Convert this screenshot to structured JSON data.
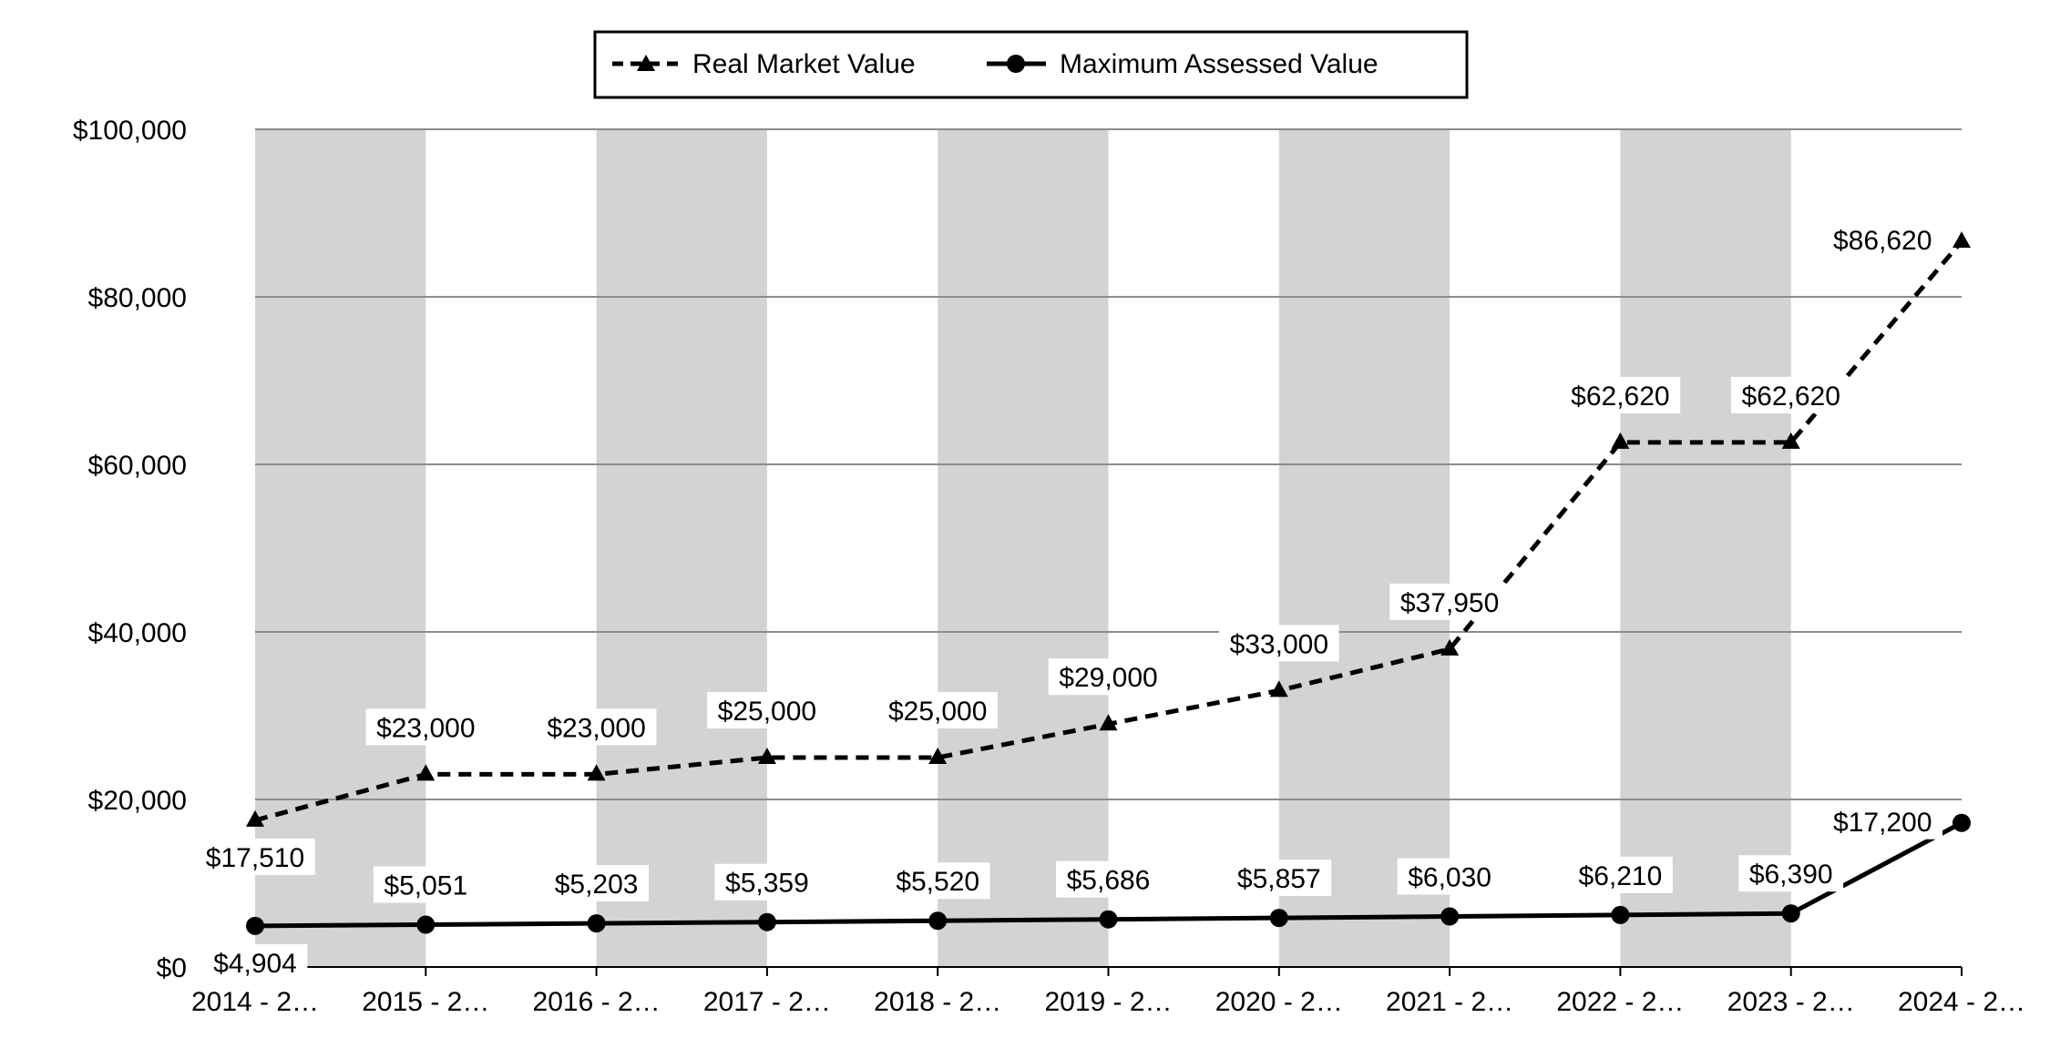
{
  "chart_data": {
    "type": "line",
    "title": "",
    "xlabel": "",
    "ylabel": "",
    "ylim": [
      0,
      100000
    ],
    "yticks": [
      "$0",
      "$20,000",
      "$40,000",
      "$60,000",
      "$80,000",
      "$100,000"
    ],
    "categories": [
      "2014 - 2…",
      "2015 - 2…",
      "2016 - 2…",
      "2017 - 2…",
      "2018 - 2…",
      "2019 - 2…",
      "2020 - 2…",
      "2021 - 2…",
      "2022 - 2…",
      "2023 - 2…",
      "2024 - 2…"
    ],
    "legend_position": "top-center",
    "grid": true,
    "alternating_column_bands": true,
    "series": [
      {
        "name": "Real Market Value",
        "marker": "triangle",
        "line_style": "dashed",
        "values": [
          17510,
          23000,
          23000,
          25000,
          25000,
          29000,
          33000,
          37950,
          62620,
          62620,
          86620
        ],
        "labels": [
          "$17,510",
          "$23,000",
          "$23,000",
          "$25,000",
          "$25,000",
          "$29,000",
          "$33,000",
          "$37,950",
          "$62,620",
          "$62,620",
          "$86,620"
        ]
      },
      {
        "name": "Maximum Assessed Value",
        "marker": "circle",
        "line_style": "solid",
        "values": [
          4904,
          5051,
          5203,
          5359,
          5520,
          5686,
          5857,
          6030,
          6210,
          6390,
          17200
        ],
        "labels": [
          "$4,904",
          "$5,051",
          "$5,203",
          "$5,359",
          "$5,520",
          "$5,686",
          "$5,857",
          "$6,030",
          "$6,210",
          "$6,390",
          "$17,200"
        ]
      }
    ],
    "colors": {
      "band": "#d3d3d3",
      "grid": "#8c8c8c",
      "line": "#000000"
    }
  }
}
